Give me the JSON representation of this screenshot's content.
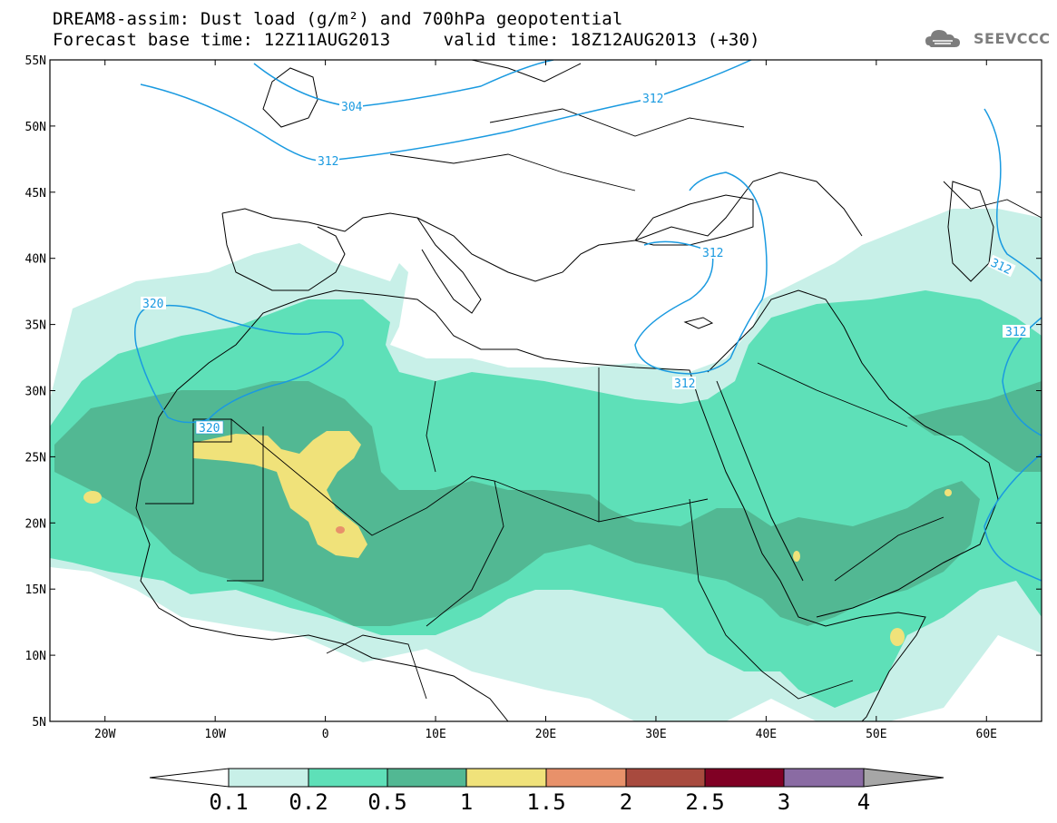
{
  "title": {
    "line1": "DREAM8-assim: Dust load (g/m²) and 700hPa geopotential",
    "line2": "Forecast base time: 12Z11AUG2013     valid time: 18Z12AUG2013 (+30)"
  },
  "logo": {
    "text": "SEEVCCC",
    "icon": "cloud-icon"
  },
  "map": {
    "lon_range": [
      -25,
      65
    ],
    "lat_range": [
      5,
      55
    ],
    "lat_ticks": [
      "55N",
      "50N",
      "45N",
      "40N",
      "35N",
      "30N",
      "25N",
      "20N",
      "15N",
      "10N",
      "5N"
    ],
    "lon_ticks": [
      "20W",
      "10W",
      "0",
      "10E",
      "20E",
      "30E",
      "40E",
      "50E",
      "60E"
    ]
  },
  "contours": {
    "color": "#1a9ae0",
    "labels": [
      "304",
      "312",
      "312",
      "312",
      "312",
      "312",
      "312",
      "320",
      "320"
    ]
  },
  "colorbar": {
    "levels": [
      "0.1",
      "0.2",
      "0.5",
      "1",
      "1.5",
      "2",
      "2.5",
      "3",
      "4"
    ],
    "colors": [
      "#ffffff",
      "#c8f0e8",
      "#5ee0b8",
      "#52b893",
      "#f0e27a",
      "#e8916a",
      "#a84a3e",
      "#800024",
      "#8a6ba3",
      "#a6a6a6"
    ]
  },
  "chart_data": {
    "type": "heatmap",
    "title": "DREAM8-assim: Dust load (g/m²) and 700hPa geopotential",
    "xlabel": "",
    "ylabel": "",
    "xlim": [
      -25,
      65
    ],
    "ylim": [
      5,
      55
    ],
    "color_levels": [
      0.1,
      0.2,
      0.5,
      1,
      1.5,
      2,
      2.5,
      3,
      4
    ],
    "contour_levels_700hPa": [
      304,
      312,
      320
    ]
  }
}
